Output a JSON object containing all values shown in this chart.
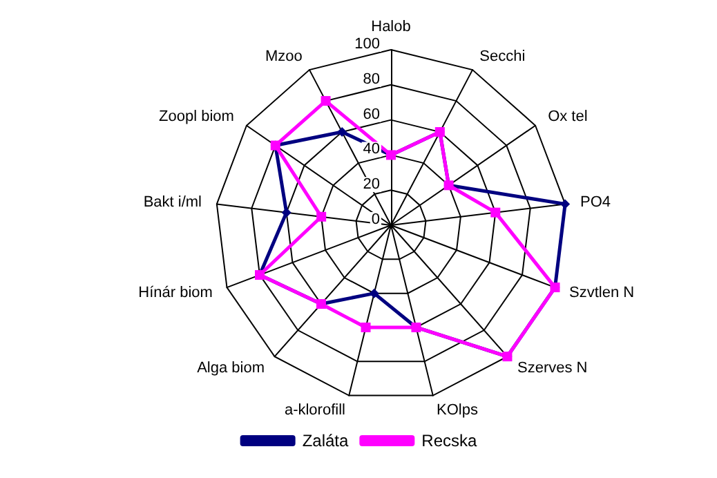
{
  "chart_data": {
    "type": "radar",
    "categories": [
      "Halob",
      "Secchi",
      "Ox tel",
      "PO4",
      "Szvtlen N",
      "Szerves N",
      "KOlps",
      "a-klorofill",
      "Alga biom",
      "Hínár biom",
      "Bakt i/ml",
      "Zoopl biom",
      "Mzoo"
    ],
    "series": [
      {
        "name": "Zaláta",
        "color": "#000080",
        "marker": "diamond",
        "values": [
          40,
          60,
          40,
          100,
          100,
          100,
          60,
          40,
          60,
          80,
          60,
          80,
          60
        ]
      },
      {
        "name": "Recska",
        "color": "#ff00ff",
        "marker": "square",
        "values": [
          40,
          60,
          40,
          60,
          100,
          100,
          60,
          60,
          60,
          80,
          40,
          80,
          80
        ]
      }
    ],
    "ylim": [
      0,
      100
    ],
    "yticks": [
      0,
      20,
      40,
      60,
      80,
      100
    ],
    "grid": true,
    "legend": "bottom"
  }
}
